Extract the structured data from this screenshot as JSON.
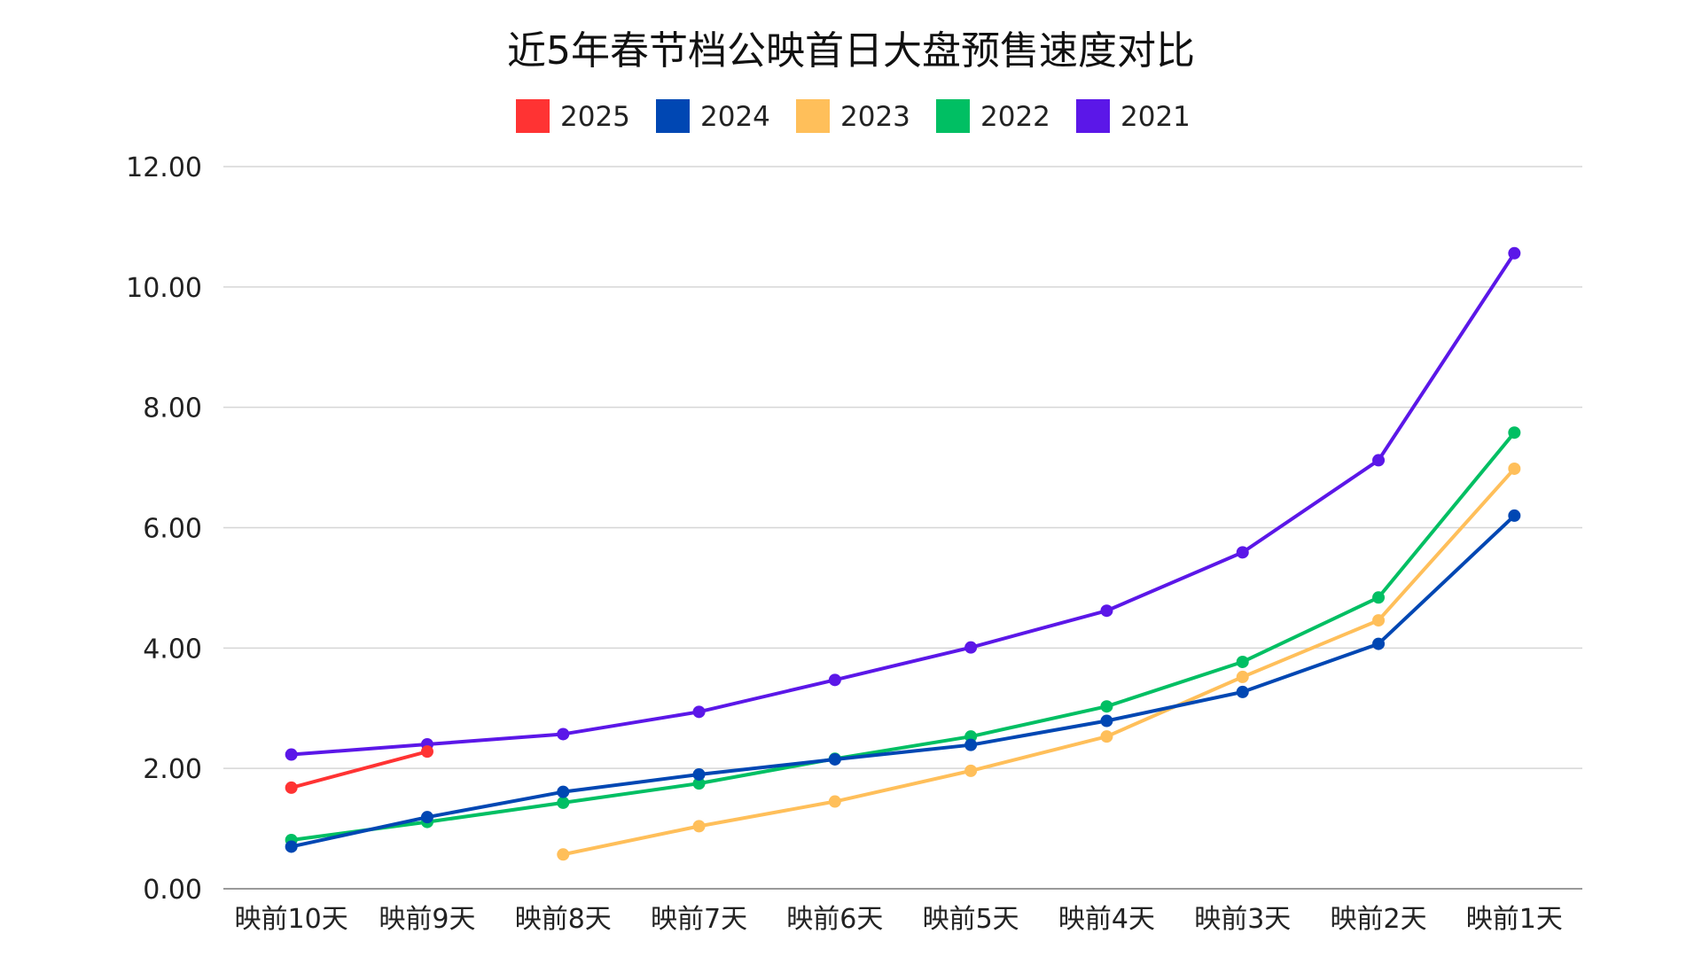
{
  "chart_data": {
    "type": "line",
    "title": "近5年春节档公映首日大盘预售速度对比",
    "categories": [
      "映前10天",
      "映前9天",
      "映前8天",
      "映前7天",
      "映前6天",
      "映前5天",
      "映前4天",
      "映前3天",
      "映前2天",
      "映前1天"
    ],
    "ylim": [
      0,
      12
    ],
    "yticks": [
      "0.00",
      "2.00",
      "4.00",
      "6.00",
      "8.00",
      "10.00",
      "12.00"
    ],
    "grid": true,
    "legend_position": "top-center",
    "series": [
      {
        "name": "2025",
        "color": "#ff3333",
        "values": [
          1.68,
          2.28,
          null,
          null,
          null,
          null,
          null,
          null,
          null,
          null
        ]
      },
      {
        "name": "2024",
        "color": "#0047b3",
        "values": [
          0.7,
          1.19,
          1.61,
          1.9,
          2.15,
          2.39,
          2.79,
          3.27,
          4.07,
          6.2
        ]
      },
      {
        "name": "2023",
        "color": "#ffbf5a",
        "values": [
          null,
          null,
          0.57,
          1.04,
          1.45,
          1.96,
          2.53,
          3.52,
          4.46,
          6.98
        ]
      },
      {
        "name": "2022",
        "color": "#00bf63",
        "values": [
          0.81,
          1.11,
          1.43,
          1.75,
          2.16,
          2.53,
          3.03,
          3.77,
          4.84,
          7.58
        ]
      },
      {
        "name": "2021",
        "color": "#5b17e8",
        "values": [
          2.23,
          2.4,
          2.57,
          2.94,
          3.47,
          4.01,
          4.62,
          5.59,
          7.12,
          10.56
        ]
      }
    ]
  }
}
